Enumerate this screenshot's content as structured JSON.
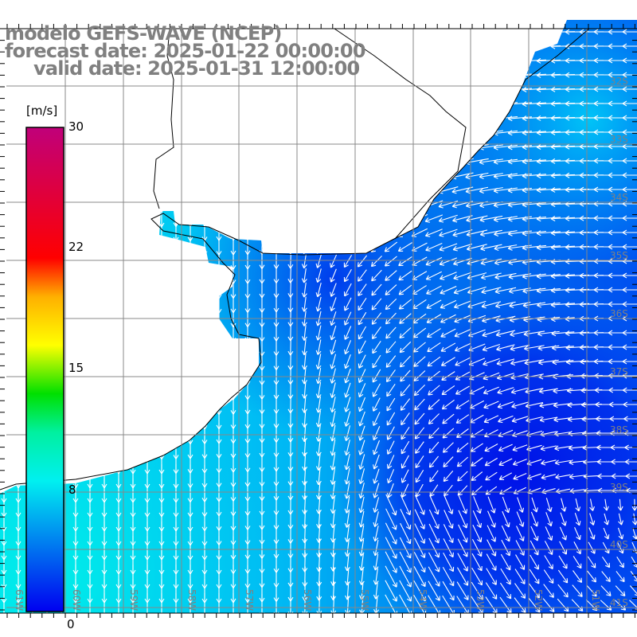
{
  "title": {
    "model": "modelo GEFS-WAVE (NCEP)",
    "forecast": "forecast date: 2025-01-22 00:00:00",
    "valid": "valid date: 2025-01-31 12:00:00"
  },
  "colorbar": {
    "unit": "[m/s]",
    "ticks": [
      "30",
      "22",
      "15",
      "8",
      "0"
    ],
    "tick_values": [
      30,
      22,
      15,
      8,
      0
    ],
    "range": [
      0,
      30
    ],
    "colors": [
      "#0000f0",
      "#00f0f0",
      "#00e000",
      "#ffff00",
      "#ff8000",
      "#ff0000",
      "#c0007a"
    ]
  },
  "lat_labels": [
    "32S",
    "33S",
    "34S",
    "35S",
    "36S",
    "37S",
    "38S",
    "39S",
    "40S",
    "41S"
  ],
  "lon_labels": [
    "61W",
    "60W",
    "59W",
    "58W",
    "57W",
    "56W",
    "55W",
    "54W",
    "53W",
    "52W",
    "51W"
  ],
  "colors": {
    "ocean_calm": "#0018ec",
    "ocean_mid": "#0a8cf4",
    "ocean_coast": "#00dcf0",
    "grid": "#888888",
    "label": "#808080"
  }
}
